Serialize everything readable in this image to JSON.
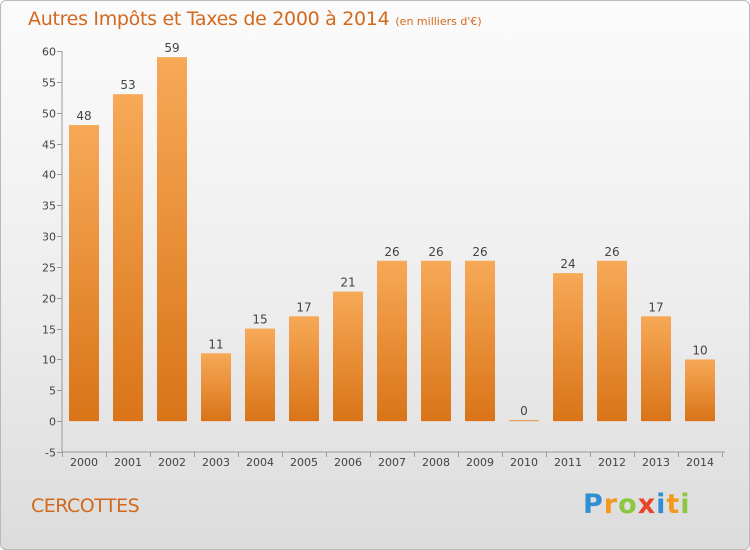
{
  "title": "Autres Impôts et Taxes de 2000 à 2014",
  "unit": "(en milliers d'€)",
  "commune": "CERCOTTES",
  "logo": {
    "letters": [
      "P",
      "r",
      "o",
      "x",
      "i",
      "t",
      "i"
    ],
    "colors": [
      "#2f8fd1",
      "#f29a1f",
      "#8ec640",
      "#e8452c",
      "#2f8fd1",
      "#f29a1f",
      "#8ec640"
    ]
  },
  "colors": {
    "bar_top": "#f7a957",
    "bar_bottom": "#d97418",
    "text": "#d2691e"
  },
  "chart_data": {
    "type": "bar",
    "title": "Autres Impôts et Taxes de 2000 à 2014",
    "xlabel": "",
    "ylabel": "",
    "categories": [
      "2000",
      "2001",
      "2002",
      "2003",
      "2004",
      "2005",
      "2006",
      "2007",
      "2008",
      "2009",
      "2010",
      "2011",
      "2012",
      "2013",
      "2014"
    ],
    "values": [
      48,
      53,
      59,
      11,
      15,
      17,
      21,
      26,
      26,
      26,
      0,
      24,
      26,
      17,
      10
    ],
    "ylim": [
      -5,
      60
    ],
    "yticks": [
      -5,
      0,
      5,
      10,
      15,
      20,
      25,
      30,
      35,
      40,
      45,
      50,
      55,
      60
    ],
    "grid": false,
    "legend": "none"
  }
}
